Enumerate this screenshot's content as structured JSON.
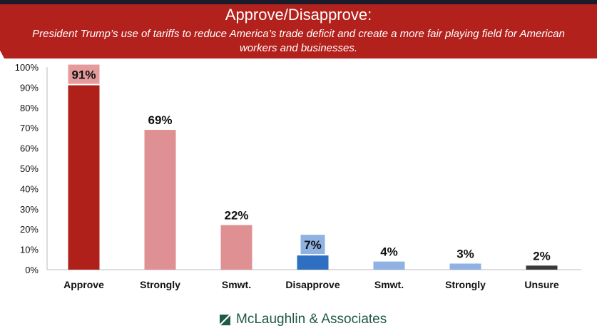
{
  "chart_data": {
    "type": "bar",
    "title": "Approve/Disapprove:",
    "subtitle": "President Trump’s use of tariffs to reduce America’s trade deficit and create a more fair playing field for American workers and businesses.",
    "categories": [
      "Approve",
      "Strongly",
      "Smwt.",
      "Disapprove",
      "Smwt.",
      "Strongly",
      "Unsure"
    ],
    "values": [
      91,
      69,
      22,
      7,
      4,
      3,
      2
    ],
    "data_labels": [
      "91%",
      "69%",
      "22%",
      "7%",
      "4%",
      "3%",
      "2%"
    ],
    "colors": [
      "#b0201b",
      "#df9093",
      "#df9093",
      "#2f6fc2",
      "#8fb2e3",
      "#8fb2e3",
      "#3a3a3a"
    ],
    "label_boxes": [
      {
        "index": 0,
        "color": "#e59a9c"
      },
      {
        "index": 3,
        "color": "#8fb2e3"
      }
    ],
    "yticks": [
      "0%",
      "10%",
      "20%",
      "30%",
      "40%",
      "50%",
      "60%",
      "70%",
      "80%",
      "90%",
      "100%"
    ],
    "ylim": [
      0,
      100
    ],
    "xlabel": "",
    "ylabel": "",
    "grid": false
  },
  "footer": {
    "brand": "McLaughlin & Associates"
  }
}
